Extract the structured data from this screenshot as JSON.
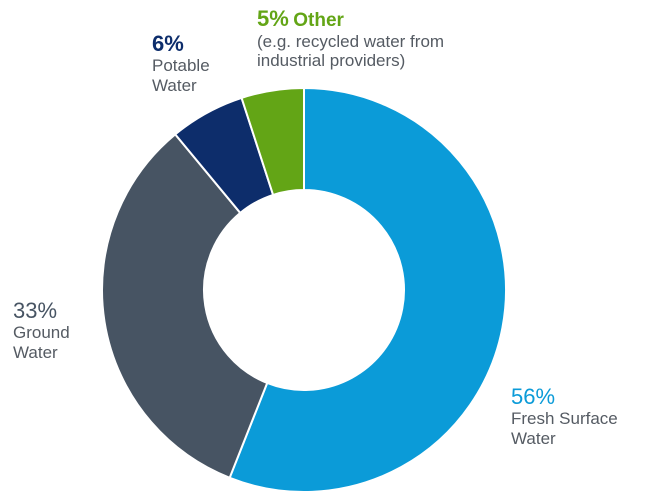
{
  "chart_data": {
    "type": "pie",
    "donut": true,
    "slices": [
      {
        "percent_label": "56%",
        "value": 56,
        "name_lines": [
          "Fresh Surface",
          "Water"
        ],
        "color": "#0b9bd8"
      },
      {
        "percent_label": "33%",
        "value": 33,
        "name_lines": [
          "Ground",
          "Water"
        ],
        "color": "#475463"
      },
      {
        "percent_label": "6%",
        "value": 6,
        "name_lines": [
          "Potable",
          "Water"
        ],
        "color": "#0d2d6b"
      },
      {
        "percent_label": "5%",
        "value": 5,
        "name": "Other",
        "note_lines": [
          "(e.g. recycled water from",
          "industrial providers)"
        ],
        "color": "#63a516"
      }
    ]
  }
}
